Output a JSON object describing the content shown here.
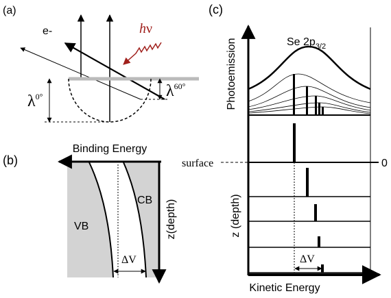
{
  "panel_a": {
    "label": "(a)",
    "electron": "e-",
    "photon": {
      "symbol": "h",
      "nu": "ν"
    },
    "lambda_0": {
      "symbol": "λ",
      "angle": "0°"
    },
    "lambda_60": {
      "symbol": "λ",
      "angle": "60°"
    }
  },
  "panel_b": {
    "label": "(b)",
    "axis_x": "Binding Energy",
    "surface": "surface",
    "vb": "VB",
    "cb": "CB",
    "axis_z": "z(depth)",
    "delta_v": "ΔV"
  },
  "panel_c": {
    "label": "(c)",
    "axis_y": "Photoemission",
    "peak": {
      "text": "Se 2p",
      "subscript": "3/2"
    },
    "zero": "0",
    "axis_z": "z (depth)",
    "delta_v": "ΔV",
    "axis_x": "Kinetic Energy"
  }
}
